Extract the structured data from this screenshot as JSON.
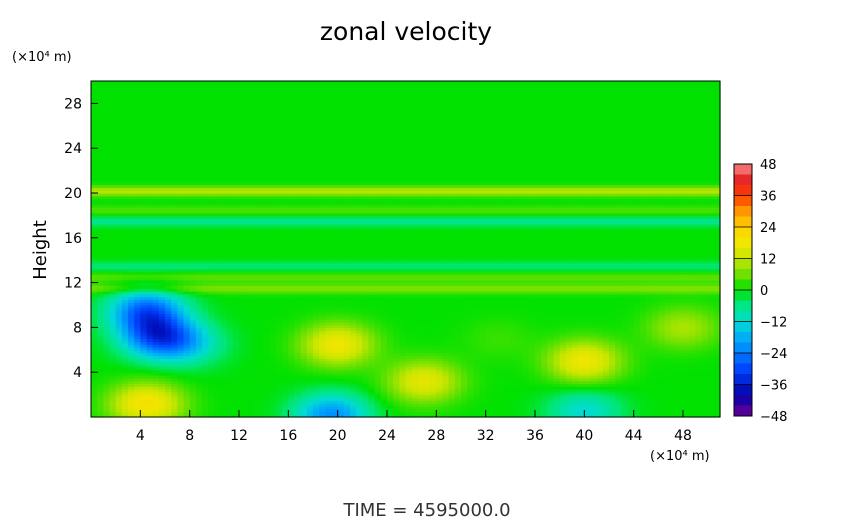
{
  "chart_data": {
    "type": "heatmap",
    "title": "zonal velocity",
    "xlabel": "",
    "ylabel": "Height",
    "x_unit": "(×10⁴ m)",
    "y_unit": "(×10⁴ m)",
    "xlim": [
      0,
      51
    ],
    "ylim": [
      0,
      30
    ],
    "x_ticks": [
      4,
      8,
      12,
      16,
      20,
      24,
      28,
      32,
      36,
      40,
      44,
      48
    ],
    "y_ticks": [
      4,
      8,
      12,
      16,
      20,
      24,
      28
    ],
    "colorbar": {
      "ticks": [
        48,
        36,
        24,
        12,
        0,
        -12,
        -24,
        -36,
        -48
      ],
      "range": [
        -48,
        48
      ],
      "bands": 24
    },
    "value_field": {
      "background": 0,
      "layers": [
        {
          "y": 20.2,
          "value": 11
        },
        {
          "y": 18.5,
          "value": 4
        },
        {
          "y": 17.5,
          "value": -7
        },
        {
          "y": 13.5,
          "value": -5
        },
        {
          "y": 12.5,
          "value": 5
        },
        {
          "y": 11.5,
          "value": 7
        }
      ],
      "features": [
        {
          "x": 4.5,
          "y": 9.5,
          "value": -26
        },
        {
          "x": 5.5,
          "y": 7.2,
          "value": -27
        },
        {
          "x": 8,
          "y": 6.5,
          "value": -10
        },
        {
          "x": 20,
          "y": 6.5,
          "value": 18
        },
        {
          "x": 4.5,
          "y": 1.2,
          "value": 20
        },
        {
          "x": 27,
          "y": 3.2,
          "value": 16
        },
        {
          "x": 40,
          "y": 5,
          "value": 18
        },
        {
          "x": 19.5,
          "y": 0.2,
          "value": -22
        },
        {
          "x": 40,
          "y": 0.6,
          "value": -12
        },
        {
          "x": 33,
          "y": 7,
          "value": 3
        },
        {
          "x": 48,
          "y": 8,
          "value": 10
        }
      ]
    }
  },
  "footer": {
    "time_text": "TIME = 4595000.0"
  }
}
